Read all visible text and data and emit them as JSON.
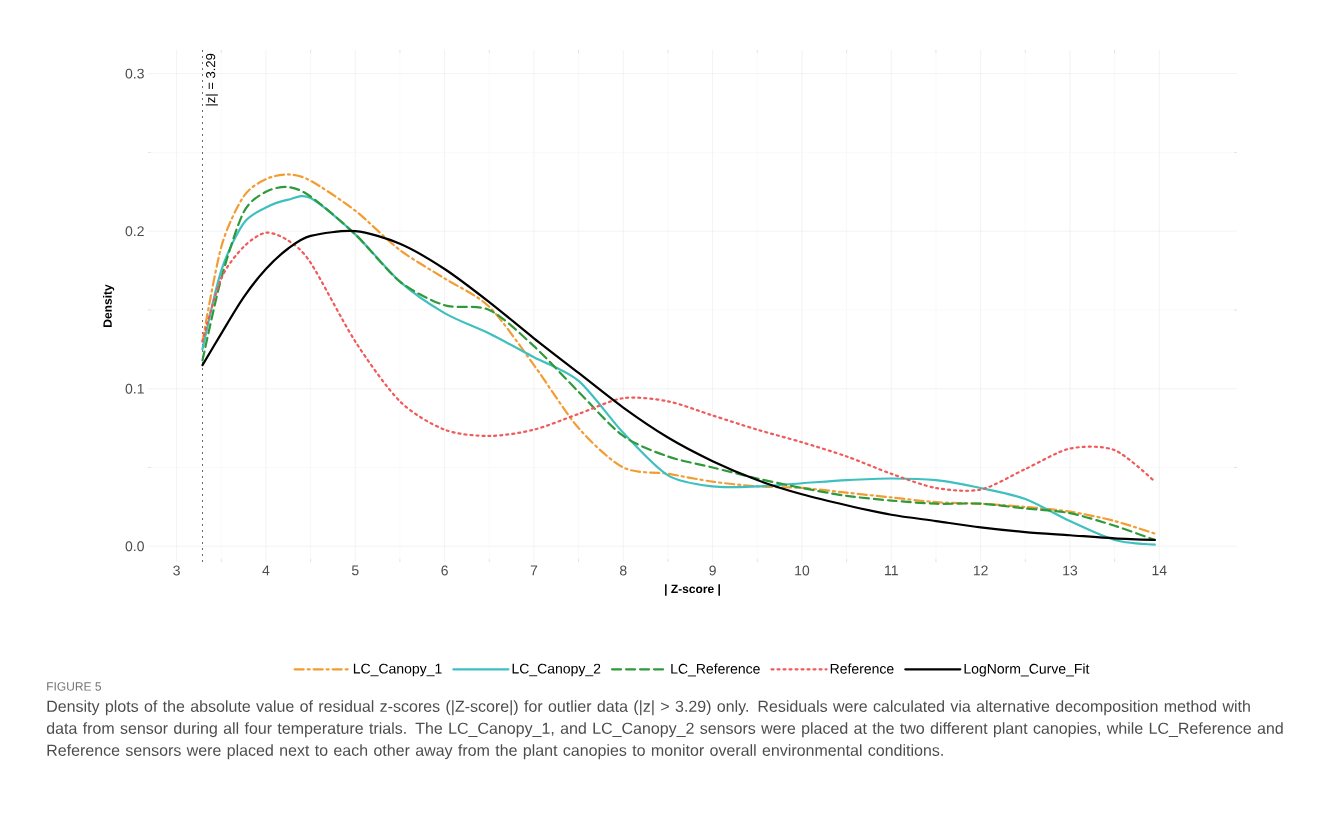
{
  "chart_data": {
    "type": "line",
    "xlabel": "| Z-score |",
    "ylabel": "Density",
    "x": [
      3.29,
      3.5,
      3.75,
      4,
      4.25,
      4.5,
      5,
      5.5,
      6,
      6.5,
      7,
      7.5,
      8,
      8.5,
      9,
      9.5,
      10,
      10.5,
      11,
      11.5,
      12,
      12.5,
      13,
      13.5,
      13.95
    ],
    "series": [
      {
        "name": "LC_Canopy_1",
        "color": "#f39c34",
        "line_style": "dashdot",
        "values": [
          0.13,
          0.19,
          0.222,
          0.233,
          0.236,
          0.232,
          0.213,
          0.188,
          0.17,
          0.152,
          0.115,
          0.075,
          0.05,
          0.046,
          0.041,
          0.038,
          0.037,
          0.034,
          0.031,
          0.028,
          0.027,
          0.025,
          0.022,
          0.016,
          0.008
        ]
      },
      {
        "name": "LC_Canopy_2",
        "color": "#3fbfc0",
        "line_style": "solid",
        "values": [
          0.125,
          0.175,
          0.205,
          0.215,
          0.22,
          0.221,
          0.198,
          0.168,
          0.148,
          0.135,
          0.12,
          0.105,
          0.072,
          0.045,
          0.038,
          0.038,
          0.04,
          0.042,
          0.043,
          0.042,
          0.037,
          0.03,
          0.016,
          0.004,
          0.001
        ]
      },
      {
        "name": "LC_Reference",
        "color": "#2e9a3a",
        "line_style": "dashed",
        "values": [
          0.118,
          0.17,
          0.212,
          0.225,
          0.228,
          0.222,
          0.198,
          0.168,
          0.153,
          0.15,
          0.127,
          0.098,
          0.07,
          0.057,
          0.05,
          0.043,
          0.037,
          0.032,
          0.029,
          0.027,
          0.027,
          0.024,
          0.021,
          0.013,
          0.004
        ]
      },
      {
        "name": "Reference",
        "color": "#f05a5a",
        "line_style": "dotted",
        "values": [
          0.13,
          0.17,
          0.19,
          0.199,
          0.194,
          0.18,
          0.13,
          0.092,
          0.074,
          0.07,
          0.074,
          0.084,
          0.094,
          0.092,
          0.083,
          0.074,
          0.066,
          0.057,
          0.046,
          0.037,
          0.036,
          0.049,
          0.062,
          0.061,
          0.041
        ]
      },
      {
        "name": "LogNorm_Curve_Fit",
        "color": "#000000",
        "line_style": "solid",
        "values": [
          0.115,
          0.135,
          0.158,
          0.176,
          0.189,
          0.197,
          0.2,
          0.192,
          0.176,
          0.155,
          0.132,
          0.11,
          0.088,
          0.069,
          0.054,
          0.042,
          0.033,
          0.026,
          0.02,
          0.016,
          0.012,
          0.009,
          0.007,
          0.005,
          0.004
        ]
      }
    ],
    "xlim": [
      2.68,
      14.87
    ],
    "ylim": [
      -0.01,
      0.315
    ],
    "xticks": [
      3,
      4,
      5,
      6,
      7,
      8,
      9,
      10,
      11,
      12,
      13,
      14
    ],
    "yticks": [
      {
        "value": 0,
        "label": "0.0"
      },
      0.1,
      0.2,
      0.3
    ],
    "ref_lines": [
      {
        "axis": "x",
        "value": 3.29,
        "label": "|z| = 3.29",
        "color": "#000000",
        "line_style": "dotted"
      }
    ],
    "grid": true,
    "legend": "bottom",
    "marker": "none",
    "annotations": [
      "FIGURE 5",
      "Density plots of the absolute value of residual z-scores (|Z-score|) for outlier data (|z| > 3.29) only. Residuals were calculated via alternative decomposition method with data from sensor during all four temperature trials. The LC_Canopy_1, and LC_Canopy_2 sensors were placed at the two different plant canopies, while LC_Reference and Reference sensors were placed next to each other away from the plant canopies to monitor overall environmental conditions."
    ]
  }
}
